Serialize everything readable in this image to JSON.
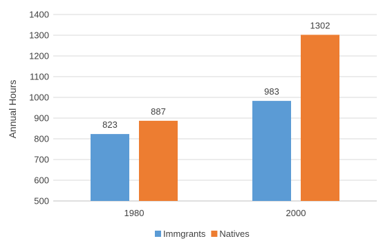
{
  "chart_data": {
    "type": "bar",
    "categories": [
      "1980",
      "2000"
    ],
    "series": [
      {
        "name": "Immgrants",
        "values": [
          823,
          983
        ],
        "color": "#5B9BD5"
      },
      {
        "name": "Natives",
        "values": [
          887,
          1302
        ],
        "color": "#ED7D31"
      }
    ],
    "ylabel": "Annual Hours",
    "xlabel": "",
    "ylim": [
      500,
      1400
    ],
    "yticks": [
      500,
      600,
      700,
      800,
      900,
      1000,
      1100,
      1200,
      1300,
      1400
    ],
    "grid": true,
    "legend_position": "bottom"
  }
}
